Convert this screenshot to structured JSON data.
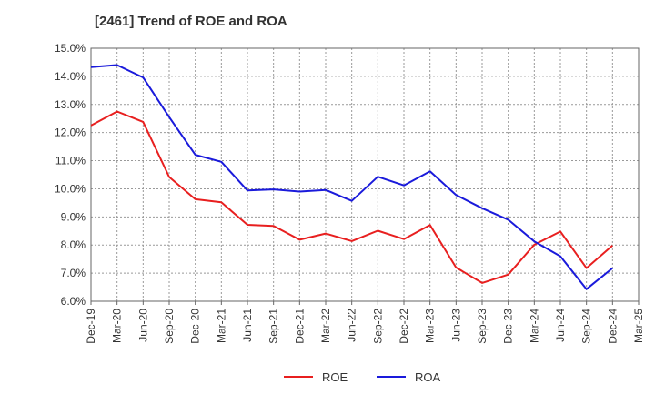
{
  "chart_data": {
    "type": "line",
    "title": "[2461]  Trend of ROE and ROA",
    "xlabel": "",
    "ylabel": "",
    "ylim": [
      6.0,
      15.0
    ],
    "yticks": [
      "6.0%",
      "7.0%",
      "8.0%",
      "9.0%",
      "10.0%",
      "11.0%",
      "12.0%",
      "13.0%",
      "14.0%",
      "15.0%"
    ],
    "categories": [
      "Dec-19",
      "Mar-20",
      "Jun-20",
      "Sep-20",
      "Dec-20",
      "Mar-21",
      "Jun-21",
      "Sep-21",
      "Dec-21",
      "Mar-22",
      "Jun-22",
      "Sep-22",
      "Dec-22",
      "Mar-23",
      "Jun-23",
      "Sep-23",
      "Dec-23",
      "Mar-24",
      "Jun-24",
      "Sep-24",
      "Dec-24",
      "Mar-25"
    ],
    "grid": true,
    "legend_position": "bottom",
    "series": [
      {
        "name": "ROE",
        "color": "#e81f1f",
        "values": [
          12.25,
          12.75,
          12.38,
          10.42,
          9.63,
          9.52,
          8.72,
          8.68,
          8.19,
          8.41,
          8.14,
          8.51,
          8.21,
          8.71,
          7.2,
          6.65,
          6.95,
          8.01,
          8.48,
          7.18,
          7.98,
          null
        ]
      },
      {
        "name": "ROA",
        "color": "#1a1adb",
        "values": [
          14.33,
          14.4,
          13.96,
          12.55,
          11.21,
          10.96,
          9.94,
          9.98,
          9.9,
          9.96,
          9.57,
          10.43,
          10.12,
          10.62,
          9.78,
          9.31,
          8.9,
          8.13,
          7.6,
          6.43,
          7.18,
          null
        ]
      }
    ]
  }
}
